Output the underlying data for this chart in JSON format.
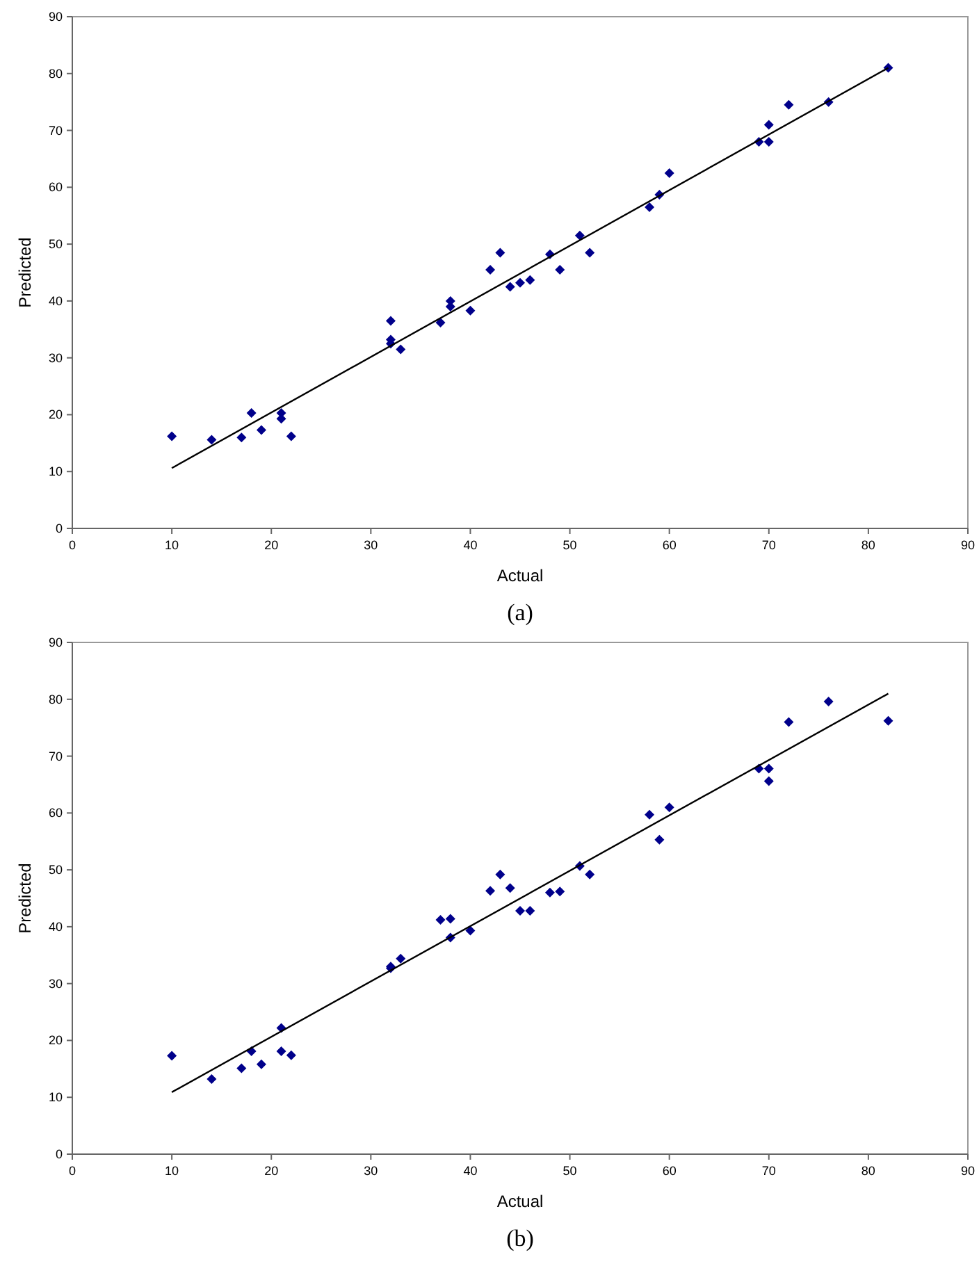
{
  "chart_data": [
    {
      "type": "scatter",
      "xlabel": "Actual",
      "ylabel": "Predicted",
      "xlim": [
        0,
        90
      ],
      "ylim": [
        0,
        90
      ],
      "xticks": [
        0,
        10,
        20,
        30,
        40,
        50,
        60,
        70,
        80,
        90
      ],
      "yticks": [
        0,
        10,
        20,
        30,
        40,
        50,
        60,
        70,
        80,
        90
      ],
      "marker": "diamond",
      "annotations": [
        "(a)"
      ],
      "series": [
        {
          "color": "#00008b",
          "x": [
            10,
            14,
            17,
            18,
            19,
            21,
            21,
            22,
            32,
            32,
            32,
            33,
            37,
            38,
            38,
            40,
            42,
            43,
            44,
            45,
            46,
            48,
            49,
            51,
            52,
            58,
            59,
            60,
            69,
            70,
            70,
            72,
            76,
            82
          ],
          "values": [
            16.2,
            15.6,
            16,
            20.3,
            17.3,
            20.3,
            19.3,
            16.2,
            36.5,
            33.2,
            32.5,
            31.5,
            36.2,
            40,
            39,
            38.3,
            45.5,
            48.5,
            42.5,
            43.2,
            43.7,
            48.2,
            45.5,
            51.5,
            48.5,
            56.5,
            58.7,
            62.5,
            68,
            71,
            68,
            74.5,
            75,
            81
          ]
        },
        {
          "type": "line",
          "marker": "none",
          "color": "#000000",
          "x": [
            10,
            82
          ],
          "values": [
            10.6,
            81
          ]
        }
      ]
    },
    {
      "type": "scatter",
      "xlabel": "Actual",
      "ylabel": "Predicted",
      "xlim": [
        0,
        90
      ],
      "ylim": [
        0,
        90
      ],
      "xticks": [
        0,
        10,
        20,
        30,
        40,
        50,
        60,
        70,
        80,
        90
      ],
      "yticks": [
        0,
        10,
        20,
        30,
        40,
        50,
        60,
        70,
        80,
        90
      ],
      "marker": "diamond",
      "annotations": [
        "(b)"
      ],
      "series": [
        {
          "color": "#00008b",
          "x": [
            10,
            14,
            17,
            18,
            19,
            21,
            21,
            22,
            32,
            32,
            33,
            37,
            38,
            38,
            40,
            42,
            43,
            44,
            45,
            46,
            48,
            49,
            51,
            52,
            58,
            59,
            60,
            69,
            70,
            70,
            72,
            76,
            82
          ],
          "values": [
            17.3,
            13.2,
            15.1,
            18.1,
            15.8,
            22.2,
            18.1,
            17.4,
            33,
            32.7,
            34.4,
            41.2,
            41.4,
            38.1,
            39.3,
            46.3,
            49.2,
            46.8,
            42.8,
            42.8,
            46,
            46.2,
            50.7,
            49.2,
            59.7,
            55.3,
            61,
            67.8,
            67.8,
            65.6,
            76,
            79.6,
            76.2
          ]
        },
        {
          "type": "line",
          "marker": "none",
          "color": "#000000",
          "x": [
            10,
            82
          ],
          "values": [
            10.9,
            81
          ]
        }
      ]
    }
  ]
}
